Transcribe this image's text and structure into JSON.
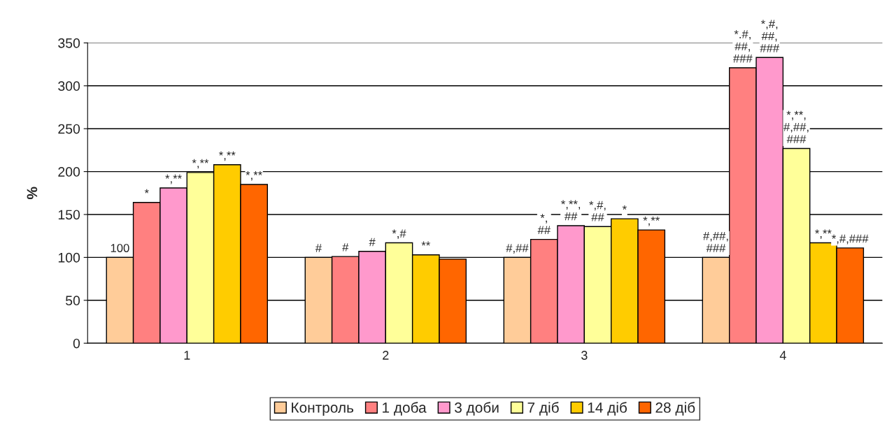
{
  "chart_data": {
    "type": "bar",
    "ylabel": "%",
    "categories": [
      "1",
      "2",
      "3",
      "4"
    ],
    "series": [
      {
        "name": "Контроль",
        "color": "#ffcc99",
        "values": [
          100,
          100,
          100,
          100
        ],
        "value_labels": [
          "100",
          "#",
          "#,##",
          "#,##,\n###"
        ]
      },
      {
        "name": "1 доба",
        "color": "#ff8080",
        "values": [
          164,
          101,
          121,
          321
        ],
        "value_labels": [
          "*",
          "#",
          "*,\n##",
          "*.#,\n##,\n###"
        ]
      },
      {
        "name": "3 доби",
        "color": "#ff99cc",
        "values": [
          181,
          107,
          137,
          333
        ],
        "value_labels": [
          "*,**",
          "#",
          "*,**,\n##",
          "*,#,\n##,\n###"
        ]
      },
      {
        "name": "7 діб",
        "color": "#ffff99",
        "values": [
          199,
          117,
          136,
          227
        ],
        "value_labels": [
          "*,**",
          "*,#",
          "*,#,\n##",
          "*,**,\n#,##,\n###"
        ]
      },
      {
        "name": "14 діб",
        "color": "#ffcc00",
        "values": [
          208,
          103,
          145,
          117
        ],
        "value_labels": [
          "*,**",
          "**",
          "*",
          "*,**"
        ]
      },
      {
        "name": "28 діб",
        "color": "#ff6600",
        "values": [
          185,
          98,
          132,
          111
        ],
        "value_labels": [
          "*,**",
          null,
          "*,**",
          "*,#,###"
        ]
      }
    ],
    "ylim": [
      0,
      350
    ],
    "yticks": [
      0,
      50,
      100,
      150,
      200,
      250,
      300,
      350
    ],
    "grid": "y",
    "legend": "bottom"
  }
}
